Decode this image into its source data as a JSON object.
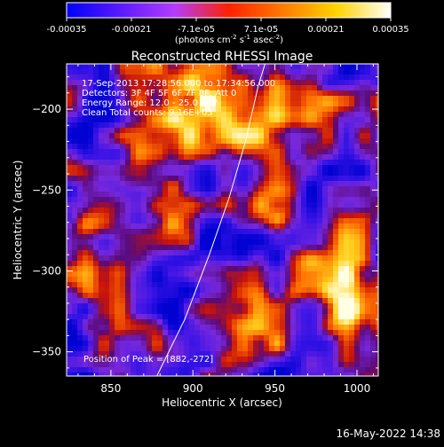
{
  "colorbar": {
    "ticks": [
      "-0.00035",
      "-0.00021",
      "-7.1e-05",
      "7.1e-05",
      "0.00021",
      "0.00035"
    ],
    "unit_parts": [
      "(photons cm",
      "-2",
      " s",
      "-1",
      " asec",
      "-2",
      ")"
    ],
    "range": [
      -0.00035,
      0.00035
    ],
    "colors": [
      "#0000ff",
      "#5a1aff",
      "#b43cff",
      "#ff2000",
      "#ff7a00",
      "#ffd400",
      "#ffffff"
    ]
  },
  "chart_data": {
    "type": "heatmap",
    "title": "Reconstructed RHESSI Image",
    "xlabel": "Heliocentric X (arcsec)",
    "ylabel": "Heliocentric Y (arcsec)",
    "xlim": [
      823,
      1013
    ],
    "ylim": [
      -365,
      -172
    ],
    "xticks": [
      850,
      900,
      950,
      1000
    ],
    "yticks": [
      -200,
      -250,
      -300,
      -350
    ],
    "xtick_labels": [
      "850",
      "900",
      "950",
      "1000"
    ],
    "ytick_labels": [
      "−200",
      "−250",
      "−300",
      "−350"
    ],
    "info_lines": [
      "17-Sep-2013 17:28:56.000 to 17:34:56.000",
      "Detectors: 3F 4F 5F 6F 7F 8F, Att 0",
      "Energy Range: 12.0 - 25.0 keV",
      "Clean     Total counts: 9.16E+03"
    ],
    "peak_label": "Position of Peak = [882,-272]",
    "peak_position": [
      882,
      -272
    ],
    "limb_line": [
      [
        878,
        -365
      ],
      [
        895,
        -330
      ],
      [
        910,
        -290
      ],
      [
        922,
        -255
      ],
      [
        932,
        -220
      ],
      [
        940,
        -185
      ],
      [
        944,
        -172
      ]
    ]
  },
  "footer": {
    "timestamp": "16-May-2022 14:38"
  }
}
